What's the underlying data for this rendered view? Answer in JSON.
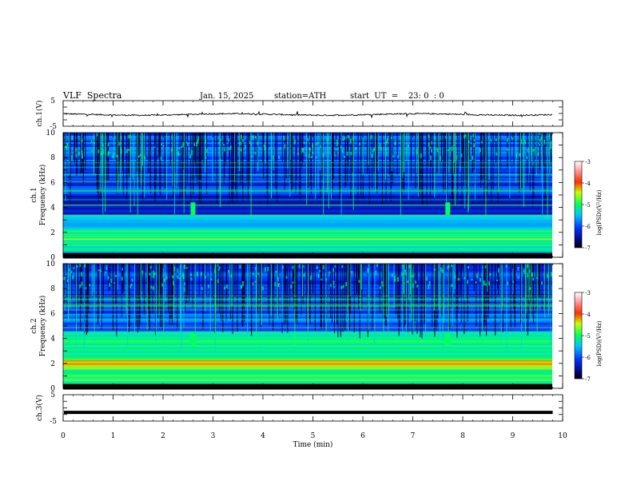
{
  "header": {
    "title": "VLF  Spectra",
    "date": "Jan. 15, 2025",
    "station": "station=ATH",
    "start": "start  UT  =    23: 0  : 0"
  },
  "chart_data": [
    {
      "type": "line",
      "panel": "ch1-waveform",
      "ylabel": "ch.1(V)",
      "ylim": [
        -5,
        5
      ],
      "yticks": [
        "5",
        "-5"
      ],
      "x_range_min": [
        0,
        9.8
      ],
      "baseline_v": -0.4,
      "noise_v": 0.25,
      "color": "#000000"
    },
    {
      "type": "heatmap",
      "panel": "ch1-spectrogram",
      "ylabel": "Frequency (kHz)",
      "channel_label": "ch.1",
      "ylim": [
        0,
        10
      ],
      "yticks": [
        "0",
        "2",
        "4",
        "6",
        "8",
        "10"
      ],
      "colorbar": {
        "label": "log(PSD)(V²/Hz)",
        "range": [
          -7,
          -3
        ],
        "ticks": [
          "-3",
          "-4",
          "-5",
          "-6",
          "-7"
        ]
      },
      "bands": [
        {
          "from_khz": 0.0,
          "to_khz": 0.3,
          "level": -7
        },
        {
          "from_khz": 0.3,
          "to_khz": 1.0,
          "level": -5.3
        },
        {
          "from_khz": 1.0,
          "to_khz": 2.4,
          "level": -5.0
        },
        {
          "from_khz": 2.4,
          "to_khz": 3.5,
          "level": -5.6
        },
        {
          "from_khz": 3.5,
          "to_khz": 5.0,
          "level": -6.3
        },
        {
          "from_khz": 5.0,
          "to_khz": 7.0,
          "level": -6.1
        },
        {
          "from_khz": 7.0,
          "to_khz": 10.0,
          "level": -6.0
        }
      ],
      "bursts_min": [
        2.6,
        7.7
      ]
    },
    {
      "type": "heatmap",
      "panel": "ch2-spectrogram",
      "ylabel": "Frequency (kHz)",
      "channel_label": "ch.2",
      "ylim": [
        0,
        10
      ],
      "yticks": [
        "0",
        "2",
        "4",
        "6",
        "8",
        "10"
      ],
      "colorbar": {
        "label": "log(PSD)(V²/Hz)",
        "range": [
          -7,
          -3
        ],
        "ticks": [
          "-3",
          "-4",
          "-5",
          "-6",
          "-7"
        ]
      },
      "bands": [
        {
          "from_khz": 0.0,
          "to_khz": 0.3,
          "level": -7
        },
        {
          "from_khz": 0.3,
          "to_khz": 1.6,
          "level": -5.0
        },
        {
          "from_khz": 1.6,
          "to_khz": 2.4,
          "level": -4.4
        },
        {
          "from_khz": 2.4,
          "to_khz": 4.6,
          "level": -5.2
        },
        {
          "from_khz": 4.6,
          "to_khz": 6.0,
          "level": -5.9
        },
        {
          "from_khz": 6.0,
          "to_khz": 10.0,
          "level": -6.1
        }
      ],
      "bursts_min": [
        2.6,
        7.7
      ]
    },
    {
      "type": "line",
      "panel": "ch3-waveform",
      "ylabel": "ch.3(V)",
      "ylim": [
        -5,
        5
      ],
      "yticks": [
        "5",
        "-5"
      ],
      "x_range_min": [
        0,
        9.8
      ],
      "baseline_v": -1.7,
      "color": "#000000",
      "xlabel": "Time  (min)",
      "xlim": [
        0,
        10
      ],
      "xticks": [
        "0",
        "1",
        "2",
        "3",
        "4",
        "5",
        "6",
        "7",
        "8",
        "9",
        "10"
      ]
    }
  ]
}
